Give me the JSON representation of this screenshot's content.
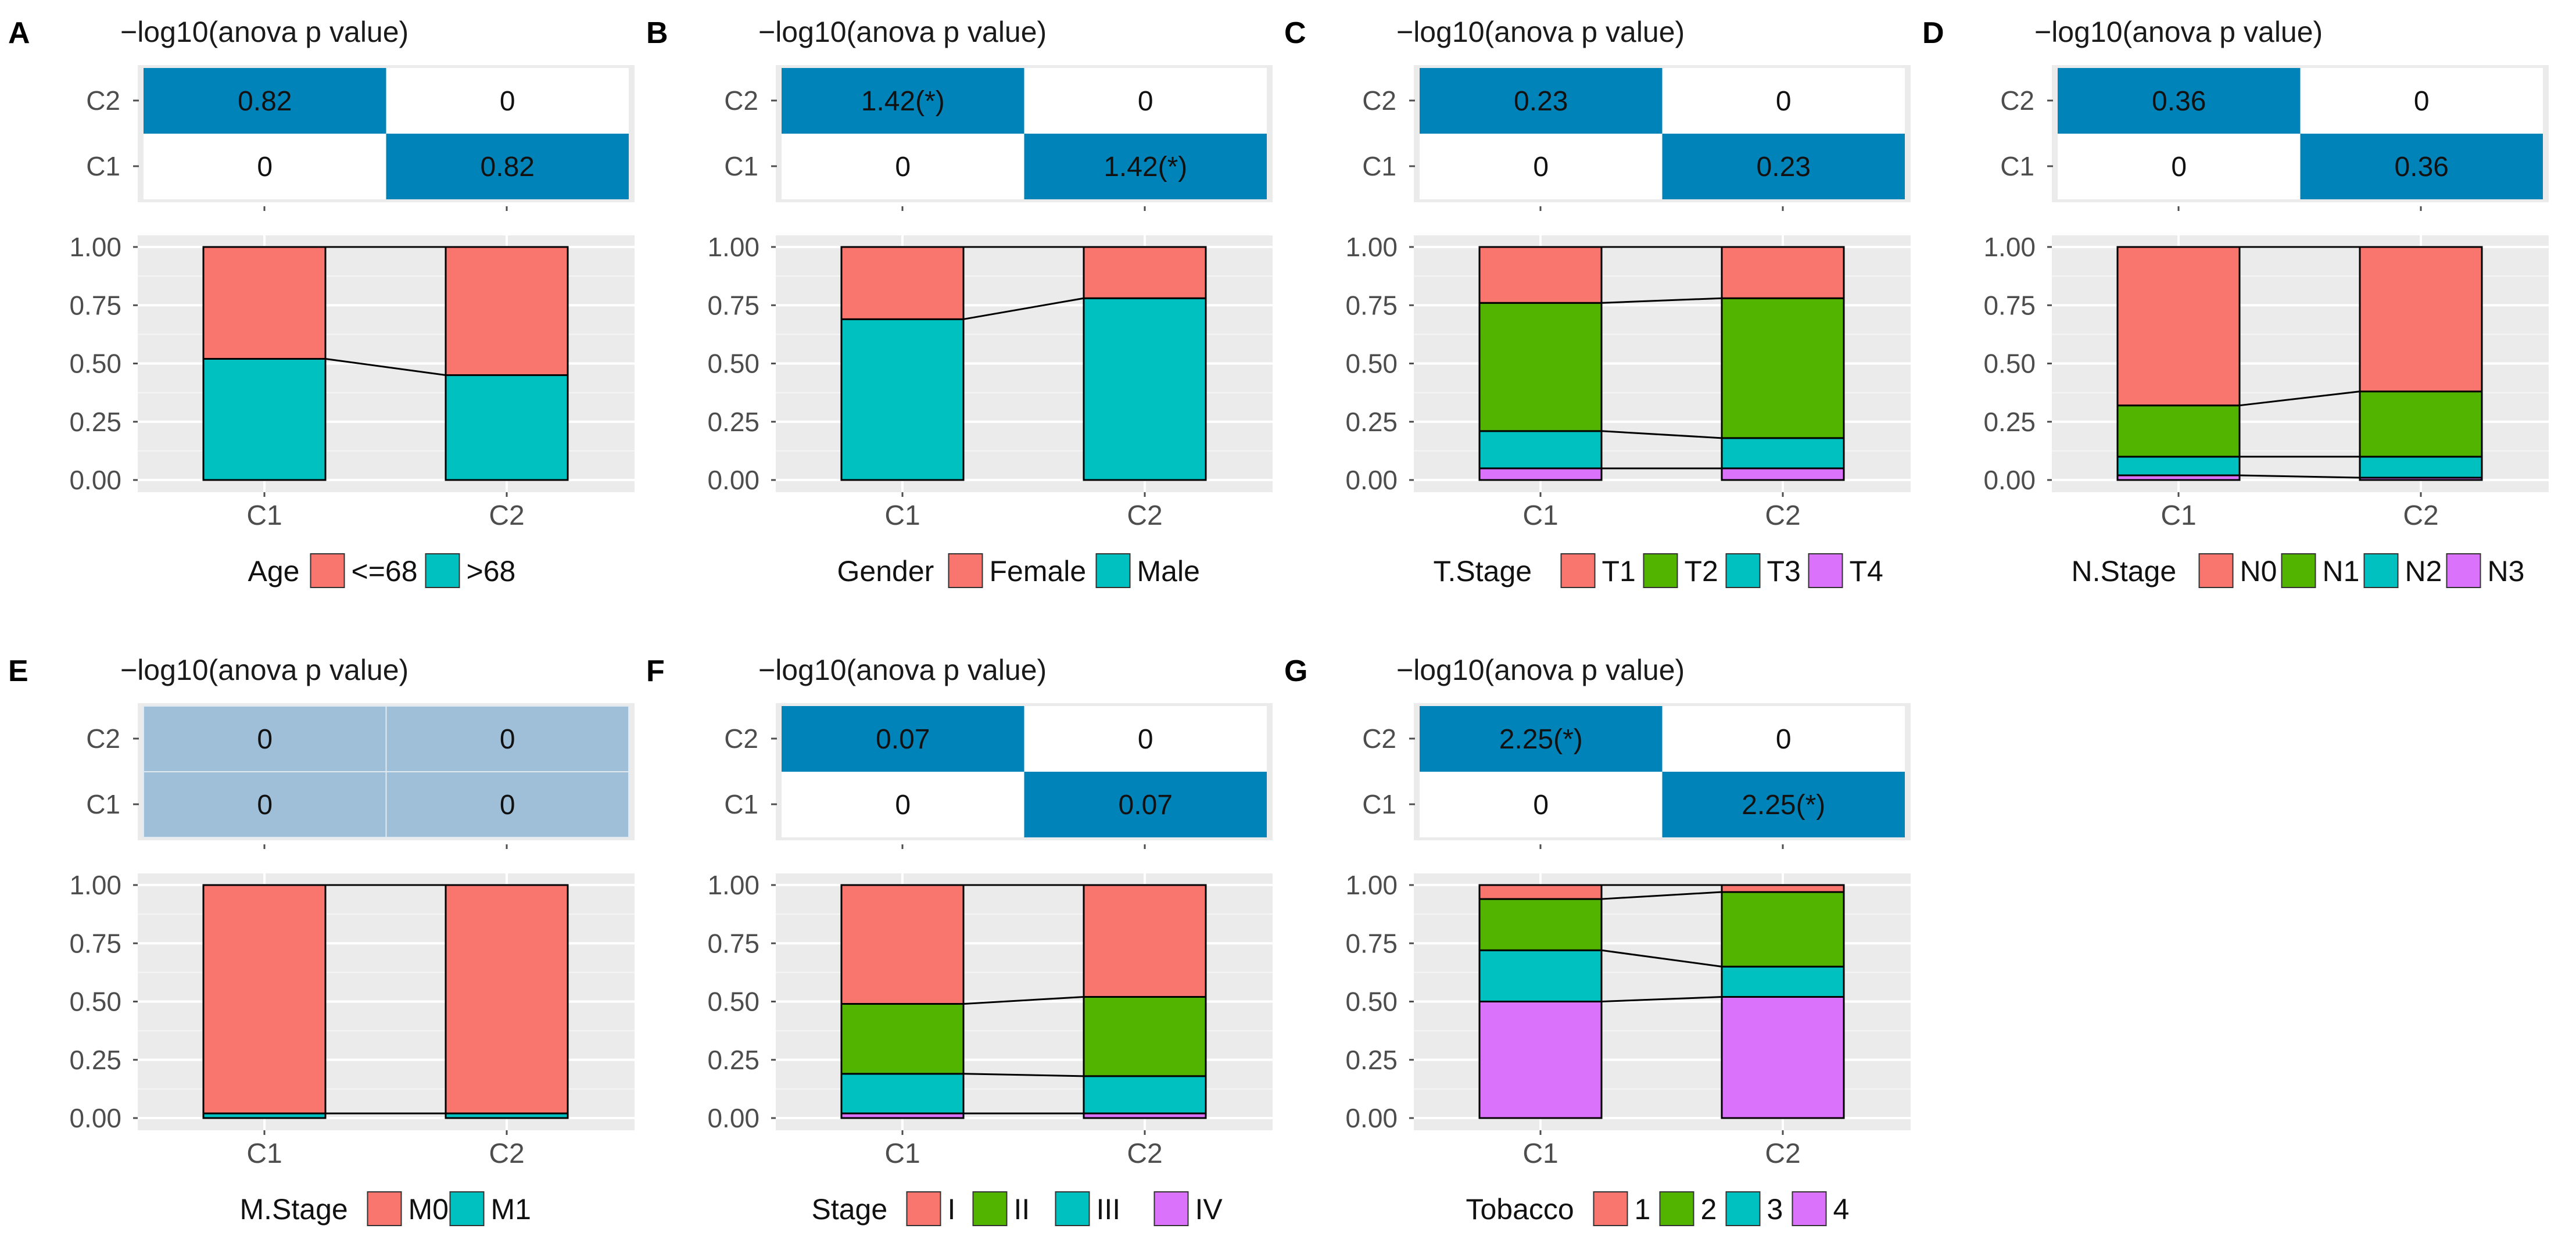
{
  "colors": {
    "panel_bg": "#EBEBEB",
    "grid": "#FFFFFF",
    "heat_high": "#0083B8",
    "heat_low": "#FFFFFF",
    "heat_zero_bg": "#9FBFD9",
    "level_1": "#F8766D",
    "level_2": "#53B400",
    "level_3": "#00C0C0",
    "level_4": "#DB72FB",
    "text": "#1A1A1A",
    "axis_text": "#4D4D4D"
  },
  "chart_data": [
    {
      "panel": "A",
      "type": "bar",
      "stacked": true,
      "heatmap_title": "−log10(anova p value)",
      "heatmap_rows": [
        "C2",
        "C1"
      ],
      "heatmap_values": [
        [
          "0.82",
          "0"
        ],
        [
          "0",
          "0.82"
        ]
      ],
      "categories": [
        "C1",
        "C2"
      ],
      "ylim": [
        0,
        1
      ],
      "yticks": [
        "0.00",
        "0.25",
        "0.50",
        "0.75",
        "1.00"
      ],
      "legend_title": "Age",
      "series": [
        {
          "name": "<=68",
          "color_key": "level_1",
          "values": [
            0.48,
            0.55
          ]
        },
        {
          "name": ">68",
          "color_key": "level_3",
          "values": [
            0.52,
            0.45
          ]
        }
      ]
    },
    {
      "panel": "B",
      "type": "bar",
      "stacked": true,
      "heatmap_title": "−log10(anova p value)",
      "heatmap_rows": [
        "C2",
        "C1"
      ],
      "heatmap_values": [
        [
          "1.42(*)",
          "0"
        ],
        [
          "0",
          "1.42(*)"
        ]
      ],
      "categories": [
        "C1",
        "C2"
      ],
      "ylim": [
        0,
        1
      ],
      "yticks": [
        "0.00",
        "0.25",
        "0.50",
        "0.75",
        "1.00"
      ],
      "legend_title": "Gender",
      "series": [
        {
          "name": "Female",
          "color_key": "level_1",
          "values": [
            0.31,
            0.22
          ]
        },
        {
          "name": "Male",
          "color_key": "level_3",
          "values": [
            0.69,
            0.78
          ]
        }
      ]
    },
    {
      "panel": "C",
      "type": "bar",
      "stacked": true,
      "heatmap_title": "−log10(anova p value)",
      "heatmap_rows": [
        "C2",
        "C1"
      ],
      "heatmap_values": [
        [
          "0.23",
          "0"
        ],
        [
          "0",
          "0.23"
        ]
      ],
      "categories": [
        "C1",
        "C2"
      ],
      "ylim": [
        0,
        1
      ],
      "yticks": [
        "0.00",
        "0.25",
        "0.50",
        "0.75",
        "1.00"
      ],
      "legend_title": "T.Stage",
      "series": [
        {
          "name": "T1",
          "color_key": "level_1",
          "values": [
            0.24,
            0.22
          ]
        },
        {
          "name": "T2",
          "color_key": "level_2",
          "values": [
            0.55,
            0.6
          ]
        },
        {
          "name": "T3",
          "color_key": "level_3",
          "values": [
            0.16,
            0.13
          ]
        },
        {
          "name": "T4",
          "color_key": "level_4",
          "values": [
            0.05,
            0.05
          ]
        }
      ]
    },
    {
      "panel": "D",
      "type": "bar",
      "stacked": true,
      "heatmap_title": "−log10(anova p value)",
      "heatmap_rows": [
        "C2",
        "C1"
      ],
      "heatmap_values": [
        [
          "0.36",
          "0"
        ],
        [
          "0",
          "0.36"
        ]
      ],
      "categories": [
        "C1",
        "C2"
      ],
      "ylim": [
        0,
        1
      ],
      "yticks": [
        "0.00",
        "0.25",
        "0.50",
        "0.75",
        "1.00"
      ],
      "legend_title": "N.Stage",
      "series": [
        {
          "name": "N0",
          "color_key": "level_1",
          "values": [
            0.68,
            0.62
          ]
        },
        {
          "name": "N1",
          "color_key": "level_2",
          "values": [
            0.22,
            0.28
          ]
        },
        {
          "name": "N2",
          "color_key": "level_3",
          "values": [
            0.08,
            0.09
          ]
        },
        {
          "name": "N3",
          "color_key": "level_4",
          "values": [
            0.02,
            0.01
          ]
        }
      ]
    },
    {
      "panel": "E",
      "type": "bar",
      "stacked": true,
      "heatmap_title": "−log10(anova p value)",
      "heatmap_rows": [
        "C2",
        "C1"
      ],
      "heatmap_values": [
        [
          "0",
          "0"
        ],
        [
          "0",
          "0"
        ]
      ],
      "categories": [
        "C1",
        "C2"
      ],
      "ylim": [
        0,
        1
      ],
      "yticks": [
        "0.00",
        "0.25",
        "0.50",
        "0.75",
        "1.00"
      ],
      "legend_title": "M.Stage",
      "series": [
        {
          "name": "M0",
          "color_key": "level_1",
          "values": [
            0.98,
            0.98
          ]
        },
        {
          "name": "M1",
          "color_key": "level_3",
          "values": [
            0.02,
            0.02
          ]
        }
      ]
    },
    {
      "panel": "F",
      "type": "bar",
      "stacked": true,
      "heatmap_title": "−log10(anova p value)",
      "heatmap_rows": [
        "C2",
        "C1"
      ],
      "heatmap_values": [
        [
          "0.07",
          "0"
        ],
        [
          "0",
          "0.07"
        ]
      ],
      "categories": [
        "C1",
        "C2"
      ],
      "ylim": [
        0,
        1
      ],
      "yticks": [
        "0.00",
        "0.25",
        "0.50",
        "0.75",
        "1.00"
      ],
      "legend_title": "Stage",
      "series": [
        {
          "name": "I",
          "color_key": "level_1",
          "values": [
            0.51,
            0.48
          ]
        },
        {
          "name": "II",
          "color_key": "level_2",
          "values": [
            0.3,
            0.34
          ]
        },
        {
          "name": "III",
          "color_key": "level_3",
          "values": [
            0.17,
            0.16
          ]
        },
        {
          "name": "IV",
          "color_key": "level_4",
          "values": [
            0.02,
            0.02
          ]
        }
      ]
    },
    {
      "panel": "G",
      "type": "bar",
      "stacked": true,
      "heatmap_title": "−log10(anova p value)",
      "heatmap_rows": [
        "C2",
        "C1"
      ],
      "heatmap_values": [
        [
          "2.25(*)",
          "0"
        ],
        [
          "0",
          "2.25(*)"
        ]
      ],
      "categories": [
        "C1",
        "C2"
      ],
      "ylim": [
        0,
        1
      ],
      "yticks": [
        "0.00",
        "0.25",
        "0.50",
        "0.75",
        "1.00"
      ],
      "legend_title": "Tobacco",
      "series": [
        {
          "name": "1",
          "color_key": "level_1",
          "values": [
            0.06,
            0.03
          ]
        },
        {
          "name": "2",
          "color_key": "level_2",
          "values": [
            0.22,
            0.32
          ]
        },
        {
          "name": "3",
          "color_key": "level_3",
          "values": [
            0.22,
            0.13
          ]
        },
        {
          "name": "4",
          "color_key": "level_4",
          "values": [
            0.5,
            0.52
          ]
        }
      ]
    }
  ]
}
